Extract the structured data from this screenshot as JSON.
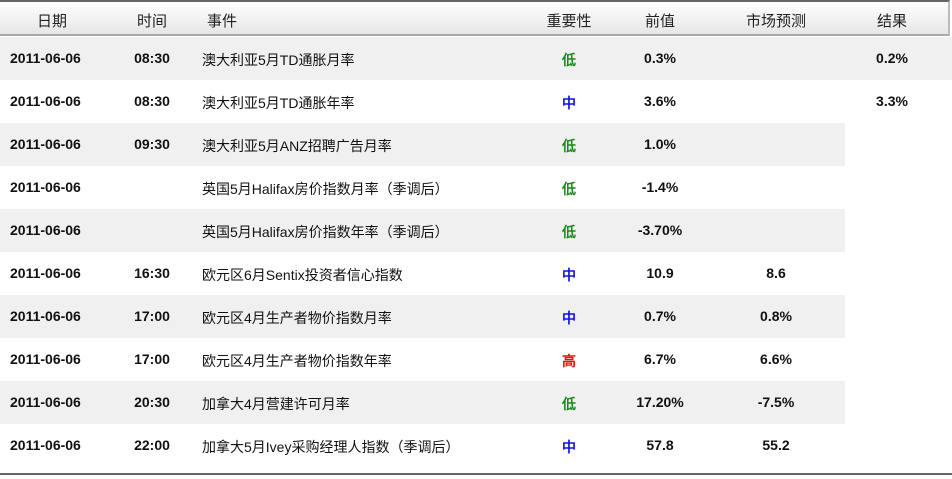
{
  "headers": {
    "date": "日期",
    "time": "时间",
    "event": "事件",
    "importance": "重要性",
    "previous": "前值",
    "forecast": "市场预测",
    "result": "结果"
  },
  "colors": {
    "低": "#1a8a1a",
    "中": "#1010e0",
    "高": "#e01010"
  },
  "rows": [
    {
      "date": "2011-06-06",
      "time": "08:30",
      "event": "澳大利亚5月TD通胀月率",
      "importance": "低",
      "previous": "0.3%",
      "forecast": "",
      "result": "0.2%"
    },
    {
      "date": "2011-06-06",
      "time": "08:30",
      "event": "澳大利亚5月TD通胀年率",
      "importance": "中",
      "previous": "3.6%",
      "forecast": "",
      "result": "3.3%"
    },
    {
      "date": "2011-06-06",
      "time": "09:30",
      "event": "澳大利亚5月ANZ招聘广告月率",
      "importance": "低",
      "previous": "1.0%",
      "forecast": "",
      "result": ""
    },
    {
      "date": "2011-06-06",
      "time": "",
      "event": "英国5月Halifax房价指数月率（季调后）",
      "importance": "低",
      "previous": "-1.4%",
      "forecast": "",
      "result": ""
    },
    {
      "date": "2011-06-06",
      "time": "",
      "event": "英国5月Halifax房价指数年率（季调后）",
      "importance": "低",
      "previous": "-3.70%",
      "forecast": "",
      "result": ""
    },
    {
      "date": "2011-06-06",
      "time": "16:30",
      "event": "欧元区6月Sentix投资者信心指数",
      "importance": "中",
      "previous": "10.9",
      "forecast": "8.6",
      "result": ""
    },
    {
      "date": "2011-06-06",
      "time": "17:00",
      "event": "欧元区4月生产者物价指数月率",
      "importance": "中",
      "previous": "0.7%",
      "forecast": "0.8%",
      "result": ""
    },
    {
      "date": "2011-06-06",
      "time": "17:00",
      "event": "欧元区4月生产者物价指数年率",
      "importance": "高",
      "previous": "6.7%",
      "forecast": "6.6%",
      "result": ""
    },
    {
      "date": "2011-06-06",
      "time": "20:30",
      "event": "加拿大4月营建许可月率",
      "importance": "低",
      "previous": "17.20%",
      "forecast": "-7.5%",
      "result": ""
    },
    {
      "date": "2011-06-06",
      "time": "22:00",
      "event": "加拿大5月Ivey采购经理人指数（季调后）",
      "importance": "中",
      "previous": "57.8",
      "forecast": "55.2",
      "result": ""
    }
  ]
}
